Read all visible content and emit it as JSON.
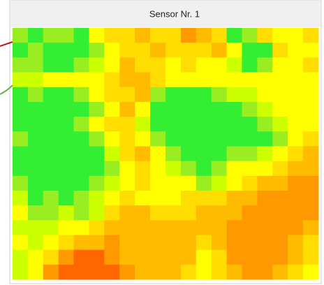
{
  "window": {
    "title": "Sensor Nr. 1"
  },
  "heatmap": {
    "colors": [
      [
        "#9e2",
        "#3e3",
        "#9e2",
        "#9e2",
        "#3e3",
        "#ff0",
        "#fd0",
        "#fd0",
        "#fb0",
        "#fd0",
        "#fd0",
        "#f90",
        "#fb0",
        "#fd0",
        "#3e3",
        "#9e2",
        "#fd0",
        "#ff0",
        "#ff0",
        "#fd0"
      ],
      [
        "#3e3",
        "#9e2",
        "#3e3",
        "#3e3",
        "#3e3",
        "#9e2",
        "#ff0",
        "#fd0",
        "#fd0",
        "#fb0",
        "#fd0",
        "#fd0",
        "#fd0",
        "#fb0",
        "#ff0",
        "#3e3",
        "#3e3",
        "#fd0",
        "#ff0",
        "#ff0"
      ],
      [
        "#9e2",
        "#9e2",
        "#3e3",
        "#3e3",
        "#9e2",
        "#cf0",
        "#ff0",
        "#fb0",
        "#fd0",
        "#fd0",
        "#ff0",
        "#fd0",
        "#ff0",
        "#ff0",
        "#cf0",
        "#3e3",
        "#9e2",
        "#ff0",
        "#ff0",
        "#fd0"
      ],
      [
        "#cf0",
        "#cf0",
        "#ff0",
        "#ff0",
        "#ff0",
        "#ff0",
        "#fd0",
        "#fb0",
        "#fb0",
        "#fd0",
        "#ff0",
        "#ff0",
        "#ff0",
        "#ff0",
        "#ff0",
        "#ff0",
        "#ff0",
        "#ff0",
        "#ff0",
        "#ff0"
      ],
      [
        "#3e3",
        "#9e2",
        "#3e3",
        "#3e3",
        "#9e2",
        "#ff0",
        "#fd0",
        "#fd0",
        "#fb0",
        "#9e2",
        "#3e3",
        "#3e3",
        "#3e3",
        "#9e2",
        "#cf0",
        "#cf0",
        "#ff0",
        "#ff0",
        "#ff0",
        "#ff0"
      ],
      [
        "#3e3",
        "#3e3",
        "#3e3",
        "#3e3",
        "#3e3",
        "#9e2",
        "#ff0",
        "#fb0",
        "#ff0",
        "#3e3",
        "#3e3",
        "#3e3",
        "#3e3",
        "#3e3",
        "#3e3",
        "#9e2",
        "#cf0",
        "#ff0",
        "#ff0",
        "#ff0"
      ],
      [
        "#3e3",
        "#3e3",
        "#3e3",
        "#3e3",
        "#9e2",
        "#ff0",
        "#fd0",
        "#fd0",
        "#cf0",
        "#3e3",
        "#3e3",
        "#3e3",
        "#3e3",
        "#3e3",
        "#3e3",
        "#3e3",
        "#9e2",
        "#cf0",
        "#ff0",
        "#ff0"
      ],
      [
        "#9e2",
        "#3e3",
        "#3e3",
        "#3e3",
        "#3e3",
        "#9e2",
        "#ff0",
        "#fd0",
        "#ff0",
        "#9e2",
        "#3e3",
        "#3e3",
        "#3e3",
        "#3e3",
        "#3e3",
        "#3e3",
        "#3e3",
        "#9e2",
        "#ff0",
        "#fd0"
      ],
      [
        "#3e3",
        "#3e3",
        "#3e3",
        "#3e3",
        "#3e3",
        "#3e3",
        "#cf0",
        "#fd0",
        "#fb0",
        "#ff0",
        "#9e2",
        "#3e3",
        "#3e3",
        "#3e3",
        "#9e2",
        "#9e2",
        "#cf0",
        "#ff0",
        "#fd0",
        "#fb0"
      ],
      [
        "#3e3",
        "#3e3",
        "#3e3",
        "#3e3",
        "#3e3",
        "#3e3",
        "#9e2",
        "#ff0",
        "#fd0",
        "#ff0",
        "#cf0",
        "#9e2",
        "#3e3",
        "#9e2",
        "#ff0",
        "#ff0",
        "#ff0",
        "#fd0",
        "#fb0",
        "#fb0"
      ],
      [
        "#9e2",
        "#3e3",
        "#3e3",
        "#3e3",
        "#3e3",
        "#9e2",
        "#cf0",
        "#ff0",
        "#fd0",
        "#ff0",
        "#ff0",
        "#ff0",
        "#9e2",
        "#cf0",
        "#ff0",
        "#fd0",
        "#fb0",
        "#fb0",
        "#f90",
        "#f90"
      ],
      [
        "#cf0",
        "#3e3",
        "#9e2",
        "#3e3",
        "#9e2",
        "#cf0",
        "#ff0",
        "#fd0",
        "#ff0",
        "#ff0",
        "#ff0",
        "#fd0",
        "#fd0",
        "#fd0",
        "#fb0",
        "#fb0",
        "#f90",
        "#f90",
        "#f90",
        "#f90"
      ],
      [
        "#ff0",
        "#9e2",
        "#9e2",
        "#cf0",
        "#9e2",
        "#cf0",
        "#fd0",
        "#fb0",
        "#fb0",
        "#fd0",
        "#fd0",
        "#fd0",
        "#fb0",
        "#fb0",
        "#fb0",
        "#f90",
        "#f90",
        "#f90",
        "#f90",
        "#f90"
      ],
      [
        "#cf0",
        "#cf0",
        "#cf0",
        "#ff0",
        "#ff0",
        "#fd0",
        "#fb0",
        "#fb0",
        "#fb0",
        "#fb0",
        "#fb0",
        "#fb0",
        "#fb0",
        "#fb0",
        "#f90",
        "#f90",
        "#f90",
        "#f90",
        "#f90",
        "#fb0"
      ],
      [
        "#ff0",
        "#cf0",
        "#ff0",
        "#fd0",
        "#fb0",
        "#fb0",
        "#f90",
        "#fb0",
        "#fb0",
        "#fb0",
        "#fb0",
        "#fb0",
        "#fd0",
        "#fb0",
        "#f90",
        "#f90",
        "#f90",
        "#f90",
        "#fb0",
        "#fd0"
      ],
      [
        "#cf0",
        "#ff0",
        "#fd0",
        "#f90",
        "#f60",
        "#f60",
        "#f90",
        "#fb0",
        "#fb0",
        "#fb0",
        "#fb0",
        "#fb0",
        "#ff0",
        "#fd0",
        "#f90",
        "#f90",
        "#f90",
        "#f90",
        "#fb0",
        "#fd0"
      ],
      [
        "#cf0",
        "#ff0",
        "#f90",
        "#f60",
        "#f60",
        "#f60",
        "#f60",
        "#f90",
        "#fb0",
        "#fb0",
        "#fb0",
        "#fd0",
        "#ff0",
        "#fd0",
        "#fb0",
        "#f90",
        "#f90",
        "#fb0",
        "#fd0",
        "#ff0"
      ]
    ]
  }
}
